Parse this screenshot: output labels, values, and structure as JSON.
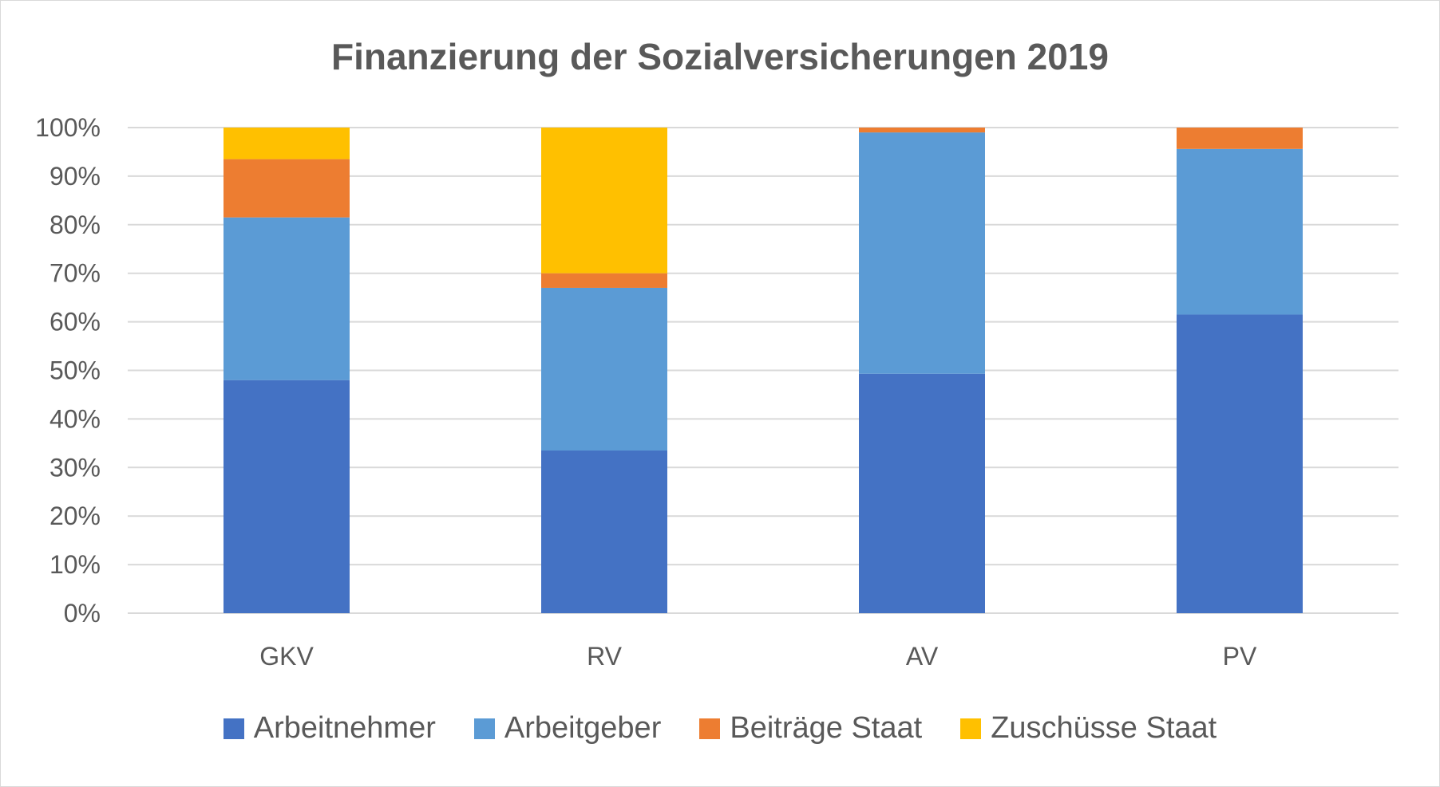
{
  "chart_data": {
    "type": "bar",
    "stacked": true,
    "normalized": true,
    "title": "Finanzierung der Sozialversicherungen 2019",
    "categories": [
      "GKV",
      "RV",
      "AV",
      "PV"
    ],
    "series": [
      {
        "name": "Arbeitnehmer",
        "color": "#4472c4",
        "values": [
          48,
          33.5,
          49.3,
          61.5
        ]
      },
      {
        "name": "Arbeitgeber",
        "color": "#5b9bd5",
        "values": [
          33.5,
          33.5,
          49.7,
          34.1
        ]
      },
      {
        "name": "Beiträge Staat",
        "color": "#ed7d31",
        "values": [
          12,
          3,
          1,
          4.4
        ]
      },
      {
        "name": "Zuschüsse Staat",
        "color": "#ffc000",
        "values": [
          6.5,
          30,
          0,
          0
        ]
      }
    ],
    "ylim": [
      0,
      100
    ],
    "y_ticks": [
      "0%",
      "10%",
      "20%",
      "30%",
      "40%",
      "50%",
      "60%",
      "70%",
      "80%",
      "90%",
      "100%"
    ],
    "grid": true,
    "legend_position": "bottom"
  }
}
